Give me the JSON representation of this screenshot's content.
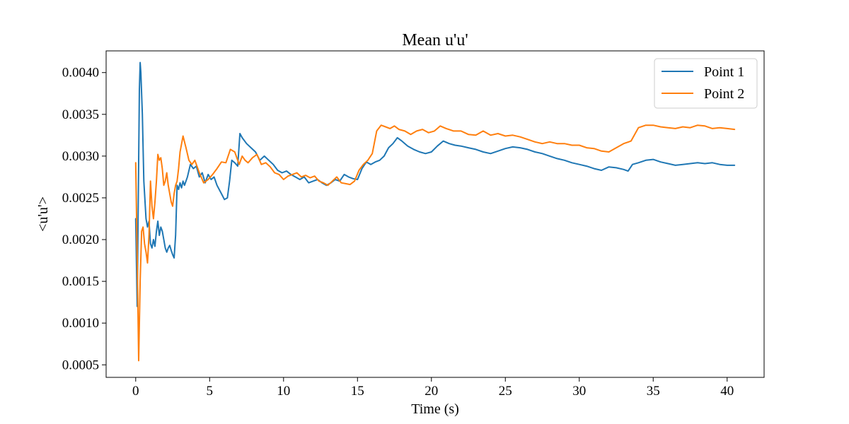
{
  "chart_data": {
    "type": "line",
    "title": "Mean u'u'",
    "xlabel": "Time (s)",
    "ylabel": "<u'u'>",
    "xlim": [
      -2.0,
      42.5
    ],
    "ylim": [
      0.00035,
      0.00426
    ],
    "xticks": [
      0,
      5,
      10,
      15,
      20,
      25,
      30,
      35,
      40
    ],
    "xtick_labels": [
      "0",
      "5",
      "10",
      "15",
      "20",
      "25",
      "30",
      "35",
      "40"
    ],
    "yticks": [
      0.0005,
      0.001,
      0.0015,
      0.002,
      0.0025,
      0.003,
      0.0035,
      0.004
    ],
    "ytick_labels": [
      "0.0005",
      "0.0010",
      "0.0015",
      "0.0020",
      "0.0025",
      "0.0030",
      "0.0035",
      "0.0040"
    ],
    "grid": false,
    "legend_position": "top-right",
    "series": [
      {
        "name": "Point 1",
        "color": "#1f77b4",
        "points": [
          [
            0.0,
            0.00225
          ],
          [
            0.1,
            0.0012
          ],
          [
            0.18,
            0.0026
          ],
          [
            0.25,
            0.0038
          ],
          [
            0.3,
            0.00412
          ],
          [
            0.35,
            0.004
          ],
          [
            0.45,
            0.0035
          ],
          [
            0.55,
            0.0027
          ],
          [
            0.7,
            0.00225
          ],
          [
            0.8,
            0.00215
          ],
          [
            0.9,
            0.00222
          ],
          [
            1.0,
            0.00195
          ],
          [
            1.1,
            0.0019
          ],
          [
            1.2,
            0.002
          ],
          [
            1.3,
            0.00192
          ],
          [
            1.4,
            0.0021
          ],
          [
            1.5,
            0.00222
          ],
          [
            1.6,
            0.00205
          ],
          [
            1.7,
            0.00215
          ],
          [
            1.8,
            0.0021
          ],
          [
            1.9,
            0.002
          ],
          [
            2.0,
            0.0019
          ],
          [
            2.1,
            0.00185
          ],
          [
            2.2,
            0.0019
          ],
          [
            2.3,
            0.00193
          ],
          [
            2.4,
            0.00187
          ],
          [
            2.5,
            0.00182
          ],
          [
            2.6,
            0.00178
          ],
          [
            2.7,
            0.00205
          ],
          [
            2.8,
            0.00265
          ],
          [
            2.9,
            0.0026
          ],
          [
            3.0,
            0.00268
          ],
          [
            3.1,
            0.00262
          ],
          [
            3.2,
            0.0027
          ],
          [
            3.3,
            0.00265
          ],
          [
            3.5,
            0.00275
          ],
          [
            3.7,
            0.0029
          ],
          [
            3.9,
            0.00285
          ],
          [
            4.1,
            0.00288
          ],
          [
            4.3,
            0.00275
          ],
          [
            4.5,
            0.0028
          ],
          [
            4.7,
            0.00268
          ],
          [
            4.9,
            0.00278
          ],
          [
            5.1,
            0.00272
          ],
          [
            5.3,
            0.00275
          ],
          [
            5.5,
            0.00265
          ],
          [
            5.8,
            0.00255
          ],
          [
            6.0,
            0.00248
          ],
          [
            6.2,
            0.0025
          ],
          [
            6.35,
            0.0027
          ],
          [
            6.5,
            0.00295
          ],
          [
            6.7,
            0.00292
          ],
          [
            6.9,
            0.00288
          ],
          [
            7.05,
            0.00327
          ],
          [
            7.2,
            0.00322
          ],
          [
            7.5,
            0.00315
          ],
          [
            7.8,
            0.0031
          ],
          [
            8.1,
            0.00305
          ],
          [
            8.4,
            0.00295
          ],
          [
            8.7,
            0.003
          ],
          [
            9.0,
            0.00295
          ],
          [
            9.3,
            0.0029
          ],
          [
            9.6,
            0.00283
          ],
          [
            9.9,
            0.0028
          ],
          [
            10.2,
            0.00282
          ],
          [
            10.5,
            0.00278
          ],
          [
            10.8,
            0.00275
          ],
          [
            11.1,
            0.00272
          ],
          [
            11.4,
            0.00275
          ],
          [
            11.7,
            0.00268
          ],
          [
            12.0,
            0.0027
          ],
          [
            12.3,
            0.00272
          ],
          [
            12.6,
            0.00268
          ],
          [
            12.9,
            0.00265
          ],
          [
            13.2,
            0.00268
          ],
          [
            13.5,
            0.00272
          ],
          [
            13.8,
            0.0027
          ],
          [
            14.1,
            0.00278
          ],
          [
            14.4,
            0.00275
          ],
          [
            14.7,
            0.00273
          ],
          [
            15.0,
            0.00272
          ],
          [
            15.3,
            0.00285
          ],
          [
            15.6,
            0.00293
          ],
          [
            15.9,
            0.0029
          ],
          [
            16.2,
            0.00293
          ],
          [
            16.5,
            0.00295
          ],
          [
            16.8,
            0.003
          ],
          [
            17.1,
            0.0031
          ],
          [
            17.4,
            0.00315
          ],
          [
            17.7,
            0.00322
          ],
          [
            18.0,
            0.00318
          ],
          [
            18.4,
            0.00312
          ],
          [
            18.8,
            0.00308
          ],
          [
            19.2,
            0.00305
          ],
          [
            19.6,
            0.00303
          ],
          [
            20.0,
            0.00305
          ],
          [
            20.4,
            0.00312
          ],
          [
            20.8,
            0.00318
          ],
          [
            21.2,
            0.00315
          ],
          [
            21.6,
            0.00313
          ],
          [
            22.0,
            0.00312
          ],
          [
            22.5,
            0.0031
          ],
          [
            23.0,
            0.00308
          ],
          [
            23.5,
            0.00305
          ],
          [
            24.0,
            0.00303
          ],
          [
            24.5,
            0.00306
          ],
          [
            25.0,
            0.00309
          ],
          [
            25.5,
            0.00311
          ],
          [
            26.0,
            0.0031
          ],
          [
            26.5,
            0.00308
          ],
          [
            27.0,
            0.00305
          ],
          [
            27.5,
            0.00303
          ],
          [
            28.0,
            0.003
          ],
          [
            28.5,
            0.00297
          ],
          [
            29.0,
            0.00295
          ],
          [
            29.5,
            0.00292
          ],
          [
            30.0,
            0.0029
          ],
          [
            30.5,
            0.00288
          ],
          [
            31.0,
            0.00285
          ],
          [
            31.5,
            0.00283
          ],
          [
            32.0,
            0.00287
          ],
          [
            32.5,
            0.00286
          ],
          [
            33.0,
            0.00284
          ],
          [
            33.3,
            0.00282
          ],
          [
            33.6,
            0.0029
          ],
          [
            34.0,
            0.00292
          ],
          [
            34.5,
            0.00295
          ],
          [
            35.0,
            0.00296
          ],
          [
            35.5,
            0.00293
          ],
          [
            36.0,
            0.00291
          ],
          [
            36.5,
            0.00289
          ],
          [
            37.0,
            0.0029
          ],
          [
            37.5,
            0.00291
          ],
          [
            38.0,
            0.00292
          ],
          [
            38.5,
            0.00291
          ],
          [
            39.0,
            0.00292
          ],
          [
            39.5,
            0.0029
          ],
          [
            40.0,
            0.00289
          ],
          [
            40.5,
            0.00289
          ]
        ]
      },
      {
        "name": "Point 2",
        "color": "#ff7f0e",
        "points": [
          [
            0.0,
            0.00292
          ],
          [
            0.1,
            0.0018
          ],
          [
            0.2,
            0.00055
          ],
          [
            0.3,
            0.0015
          ],
          [
            0.4,
            0.0021
          ],
          [
            0.5,
            0.00215
          ],
          [
            0.6,
            0.00195
          ],
          [
            0.7,
            0.00185
          ],
          [
            0.8,
            0.00172
          ],
          [
            0.9,
            0.00205
          ],
          [
            1.0,
            0.0027
          ],
          [
            1.1,
            0.0024
          ],
          [
            1.2,
            0.00225
          ],
          [
            1.3,
            0.00245
          ],
          [
            1.4,
            0.0027
          ],
          [
            1.5,
            0.00302
          ],
          [
            1.6,
            0.00295
          ],
          [
            1.7,
            0.00298
          ],
          [
            1.8,
            0.00285
          ],
          [
            1.9,
            0.00265
          ],
          [
            2.0,
            0.0027
          ],
          [
            2.1,
            0.0028
          ],
          [
            2.2,
            0.00265
          ],
          [
            2.3,
            0.00255
          ],
          [
            2.4,
            0.00245
          ],
          [
            2.5,
            0.0024
          ],
          [
            2.6,
            0.00255
          ],
          [
            2.7,
            0.00265
          ],
          [
            2.8,
            0.0027
          ],
          [
            2.9,
            0.00285
          ],
          [
            3.0,
            0.00305
          ],
          [
            3.2,
            0.00324
          ],
          [
            3.4,
            0.0031
          ],
          [
            3.6,
            0.00295
          ],
          [
            3.8,
            0.0029
          ],
          [
            4.0,
            0.00295
          ],
          [
            4.3,
            0.0028
          ],
          [
            4.6,
            0.00268
          ],
          [
            4.9,
            0.00272
          ],
          [
            5.2,
            0.00278
          ],
          [
            5.5,
            0.00285
          ],
          [
            5.8,
            0.00293
          ],
          [
            6.1,
            0.00292
          ],
          [
            6.4,
            0.00308
          ],
          [
            6.7,
            0.00305
          ],
          [
            7.0,
            0.0029
          ],
          [
            7.2,
            0.003
          ],
          [
            7.4,
            0.00295
          ],
          [
            7.6,
            0.00292
          ],
          [
            7.9,
            0.00298
          ],
          [
            8.2,
            0.00302
          ],
          [
            8.5,
            0.0029
          ],
          [
            8.8,
            0.00292
          ],
          [
            9.1,
            0.00287
          ],
          [
            9.4,
            0.0028
          ],
          [
            9.7,
            0.00278
          ],
          [
            10.0,
            0.00272
          ],
          [
            10.3,
            0.00276
          ],
          [
            10.6,
            0.00278
          ],
          [
            10.9,
            0.0028
          ],
          [
            11.2,
            0.00275
          ],
          [
            11.5,
            0.00277
          ],
          [
            11.8,
            0.00274
          ],
          [
            12.1,
            0.00276
          ],
          [
            12.4,
            0.0027
          ],
          [
            12.7,
            0.00268
          ],
          [
            13.0,
            0.00265
          ],
          [
            13.3,
            0.0027
          ],
          [
            13.6,
            0.00275
          ],
          [
            13.9,
            0.00268
          ],
          [
            14.2,
            0.00267
          ],
          [
            14.5,
            0.00266
          ],
          [
            14.8,
            0.0027
          ],
          [
            15.1,
            0.00283
          ],
          [
            15.4,
            0.0029
          ],
          [
            15.7,
            0.00295
          ],
          [
            16.0,
            0.00303
          ],
          [
            16.3,
            0.0033
          ],
          [
            16.6,
            0.00337
          ],
          [
            16.9,
            0.00335
          ],
          [
            17.2,
            0.00333
          ],
          [
            17.5,
            0.00336
          ],
          [
            17.8,
            0.00332
          ],
          [
            18.2,
            0.0033
          ],
          [
            18.6,
            0.00326
          ],
          [
            19.0,
            0.0033
          ],
          [
            19.4,
            0.00332
          ],
          [
            19.8,
            0.00328
          ],
          [
            20.2,
            0.0033
          ],
          [
            20.6,
            0.00336
          ],
          [
            21.0,
            0.00333
          ],
          [
            21.5,
            0.0033
          ],
          [
            22.0,
            0.0033
          ],
          [
            22.5,
            0.00326
          ],
          [
            23.0,
            0.00325
          ],
          [
            23.5,
            0.0033
          ],
          [
            24.0,
            0.00325
          ],
          [
            24.5,
            0.00327
          ],
          [
            25.0,
            0.00324
          ],
          [
            25.5,
            0.00325
          ],
          [
            26.0,
            0.00323
          ],
          [
            26.5,
            0.0032
          ],
          [
            27.0,
            0.00317
          ],
          [
            27.5,
            0.00315
          ],
          [
            28.0,
            0.00317
          ],
          [
            28.5,
            0.00315
          ],
          [
            29.0,
            0.00315
          ],
          [
            29.5,
            0.00313
          ],
          [
            30.0,
            0.00313
          ],
          [
            30.5,
            0.0031
          ],
          [
            31.0,
            0.00309
          ],
          [
            31.5,
            0.00306
          ],
          [
            32.0,
            0.00305
          ],
          [
            32.5,
            0.0031
          ],
          [
            33.0,
            0.00315
          ],
          [
            33.5,
            0.00318
          ],
          [
            34.0,
            0.00334
          ],
          [
            34.5,
            0.00337
          ],
          [
            35.0,
            0.00337
          ],
          [
            35.5,
            0.00335
          ],
          [
            36.0,
            0.00334
          ],
          [
            36.5,
            0.00333
          ],
          [
            37.0,
            0.00335
          ],
          [
            37.5,
            0.00334
          ],
          [
            38.0,
            0.00337
          ],
          [
            38.5,
            0.00336
          ],
          [
            39.0,
            0.00333
          ],
          [
            39.5,
            0.00334
          ],
          [
            40.0,
            0.00333
          ],
          [
            40.5,
            0.00332
          ]
        ]
      }
    ]
  }
}
